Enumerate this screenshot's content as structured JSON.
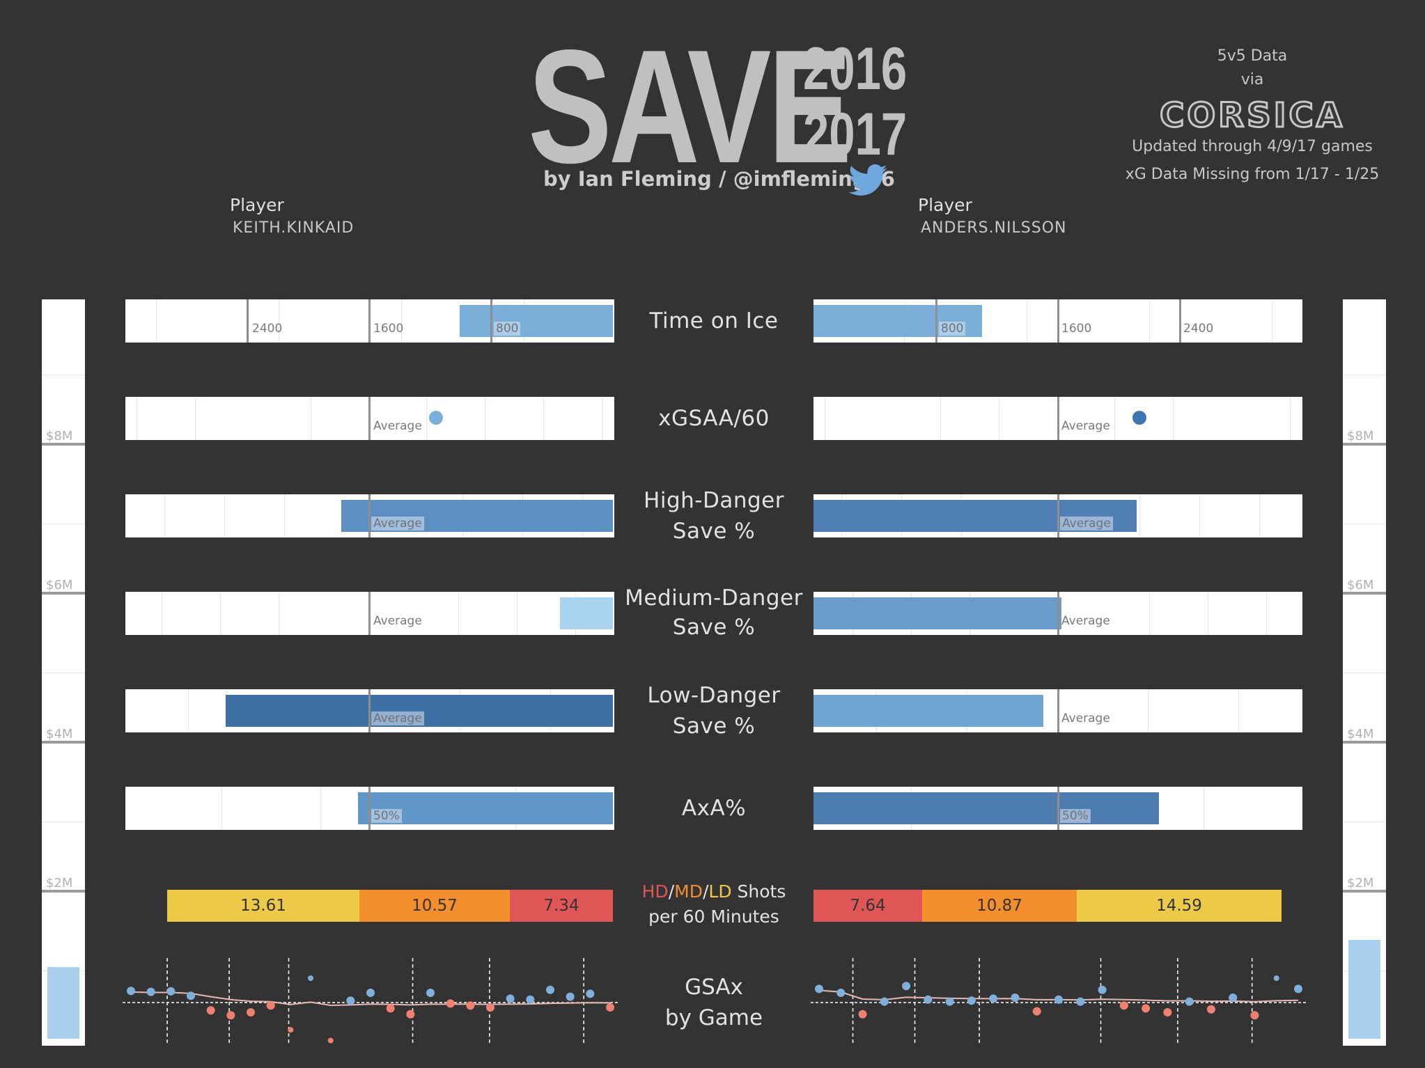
{
  "header": {
    "logo_word": "SAVE",
    "logo_year_top": "2016",
    "logo_year_bottom": "2017",
    "byline": "by Ian Fleming / @imfleming16"
  },
  "info": {
    "line1": "5v5 Data",
    "line2": "via",
    "source": "CORSICA",
    "updated": "Updated through 4/9/17 games",
    "missing": "xG Data Missing from 1/17 - 1/25"
  },
  "left_player": {
    "label": "Player",
    "name": "KEITH.KINKAID"
  },
  "right_player": {
    "label": "Player",
    "name": "ANDERS.NILSSON"
  },
  "salary_axis": {
    "labels": [
      "$8M",
      "$6M",
      "$4M",
      "$2M"
    ]
  },
  "metrics": {
    "toi": "Time on Ice",
    "xgsaa_title": "xGSAA/60",
    "hd_line1": "High-Danger",
    "hd_line2": "Save %",
    "md_line1": "Medium-Danger",
    "md_line2": "Save %",
    "ld_line1": "Low-Danger",
    "ld_line2": "Save %",
    "axa": "AxA%",
    "shots_hd": "HD",
    "shots_md": "MD",
    "shots_ld": "LD",
    "shots_word": " Shots",
    "shots_line2": "per 60 Minutes",
    "gsax_line1": "GSAx",
    "gsax_line2": "by Game"
  },
  "ref_labels": {
    "toi_ticks": [
      "2400",
      "1600",
      "800"
    ],
    "average": "Average",
    "fifty": "50%"
  },
  "colors": {
    "background": "#333333",
    "hd": "#e05555",
    "md": "#f28e2b",
    "ld": "#edc948",
    "bar_light": "#a9d0ee",
    "bar_mid": "#6a9ccb",
    "bar_dark": "#3f6ea6",
    "dot_pos": "#7fb0dc",
    "dot_neg": "#f08070"
  },
  "chart_data": [
    {
      "type": "bar",
      "title": "Time on Ice",
      "series": [
        {
          "name": "KEITH.KINKAID",
          "value": 1000
        },
        {
          "name": "ANDERS.NILSSON",
          "value": 1100
        }
      ],
      "ticks": [
        800,
        1600,
        2400
      ]
    },
    {
      "type": "scatter",
      "title": "xGSAA/60",
      "series": [
        {
          "name": "KEITH.KINKAID",
          "value_vs_average": 0.14
        },
        {
          "name": "ANDERS.NILSSON",
          "value_vs_average": 0.17
        }
      ]
    },
    {
      "type": "bar",
      "title": "High-Danger Save %",
      "series": [
        {
          "name": "KEITH.KINKAID",
          "value_vs_average": 0.057
        },
        {
          "name": "ANDERS.NILSSON",
          "value_vs_average": 0.017
        }
      ]
    },
    {
      "type": "bar",
      "title": "Medium-Danger Save %",
      "series": [
        {
          "name": "KEITH.KINKAID",
          "value_vs_average": -0.011
        },
        {
          "name": "ANDERS.NILSSON",
          "value_vs_average": 0.001
        }
      ]
    },
    {
      "type": "bar",
      "title": "Low-Danger Save %",
      "series": [
        {
          "name": "KEITH.KINKAID",
          "value_vs_average": 0.03
        },
        {
          "name": "ANDERS.NILSSON",
          "value_vs_average": -0.002
        }
      ]
    },
    {
      "type": "bar",
      "title": "AxA%",
      "series": [
        {
          "name": "KEITH.KINKAID",
          "value": 55
        },
        {
          "name": "ANDERS.NILSSON",
          "value": 54.3
        }
      ]
    },
    {
      "type": "bar",
      "title": "HD/MD/LD Shots per 60 Minutes",
      "categories": [
        "LD",
        "MD",
        "HD"
      ],
      "series": [
        {
          "name": "KEITH.KINKAID",
          "values": [
            13.61,
            10.57,
            7.34
          ]
        },
        {
          "name": "ANDERS.NILSSON",
          "values": [
            14.59,
            10.87,
            7.64
          ]
        }
      ]
    },
    {
      "type": "bar",
      "title": "Salary",
      "ylim": [
        0,
        10
      ],
      "y_ticks": [
        "$8M",
        "$6M",
        "$4M",
        "$2M"
      ],
      "series": [
        {
          "name": "KEITH.KINKAID",
          "value": 0.725
        },
        {
          "name": "ANDERS.NILSSON",
          "value": 1.0
        }
      ]
    },
    {
      "type": "scatter",
      "title": "GSAx by Game",
      "series": [
        {
          "name": "KEITH.KINKAID",
          "values": [
            1.2,
            1.1,
            1.15,
            0.7,
            -0.8,
            -1.3,
            -1.0,
            -0.3,
            -2.8,
            2.5,
            -3.9,
            0.2,
            1.0,
            -0.6,
            -1.2,
            1.0,
            -0.1,
            -0.3,
            -0.5,
            0.4,
            0.3,
            1.3,
            0.6,
            0.9,
            -0.5
          ]
        },
        {
          "name": "ANDERS.NILSSON",
          "values": [
            1.4,
            1.0,
            -1.2,
            0.1,
            1.7,
            0.3,
            0.1,
            0.2,
            0.4,
            0.5,
            -0.9,
            0.3,
            0.1,
            1.3,
            -0.3,
            -0.6,
            -1.0,
            0.1,
            -0.7,
            0.5,
            -1.3,
            2.5,
            1.4
          ]
        }
      ]
    }
  ]
}
